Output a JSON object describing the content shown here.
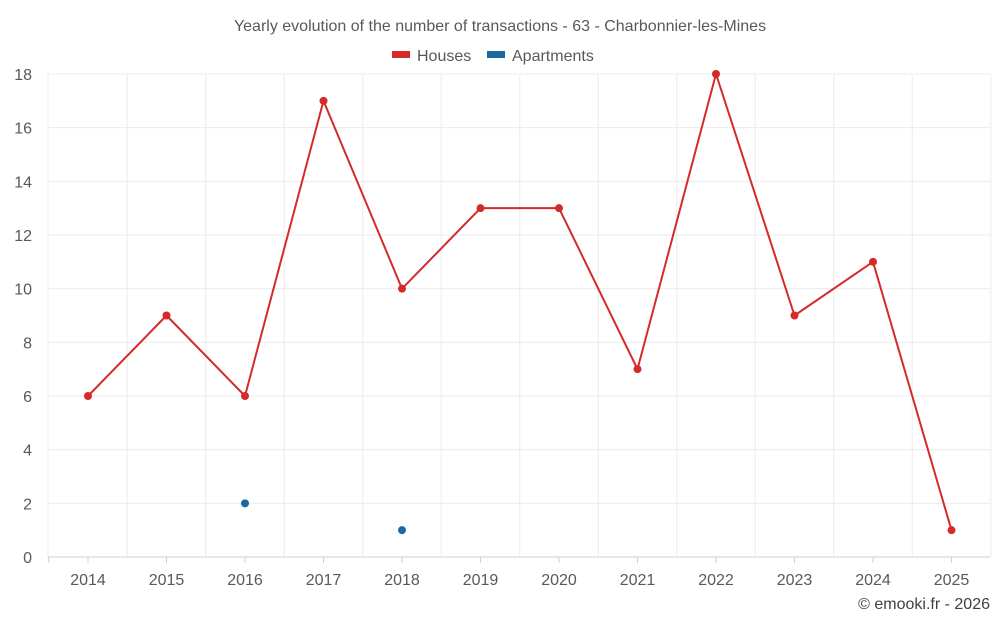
{
  "chart_data": {
    "type": "line",
    "title": "Yearly evolution of the number of transactions - 63 - Charbonnier-les-Mines",
    "xlabel": "",
    "ylabel": "",
    "x": [
      "2014",
      "2015",
      "2016",
      "2017",
      "2018",
      "2019",
      "2020",
      "2021",
      "2022",
      "2023",
      "2024",
      "2025"
    ],
    "ylim": [
      0,
      18
    ],
    "yticks": [
      0,
      2,
      4,
      6,
      8,
      10,
      12,
      14,
      16,
      18
    ],
    "grid": true,
    "legend_position": "top-center",
    "series": [
      {
        "name": "Houses",
        "color": "#d42a2a",
        "values": [
          6,
          9,
          6,
          17,
          10,
          13,
          13,
          7,
          18,
          9,
          11,
          1
        ]
      },
      {
        "name": "Apartments",
        "color": "#1a6aa0",
        "values": [
          null,
          null,
          2,
          null,
          1,
          null,
          null,
          null,
          null,
          null,
          null,
          null
        ]
      }
    ]
  },
  "footer": "© emooki.fr - 2026"
}
